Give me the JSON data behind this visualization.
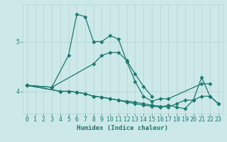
{
  "xlabel": "Humidex (Indice chaleur)",
  "background_color": "#cce8e8",
  "line_color": "#1a7a6e",
  "grid_color": "#b8d4d4",
  "xlim": [
    -0.5,
    23.5
  ],
  "ylim": [
    3.55,
    5.75
  ],
  "yticks": [
    4,
    5
  ],
  "xticks": [
    0,
    1,
    2,
    3,
    4,
    5,
    6,
    7,
    8,
    9,
    10,
    11,
    12,
    13,
    14,
    15,
    16,
    17,
    18,
    19,
    20,
    21,
    22,
    23
  ],
  "series": [
    {
      "x": [
        0,
        3,
        5,
        6,
        7,
        8,
        9,
        10,
        11,
        12,
        13,
        14,
        15,
        16,
        17,
        21,
        22
      ],
      "y": [
        4.12,
        4.08,
        4.72,
        5.55,
        5.5,
        5.0,
        5.0,
        5.12,
        5.05,
        4.6,
        4.2,
        3.9,
        3.8,
        3.85,
        3.85,
        4.15,
        4.15
      ]
    },
    {
      "x": [
        0,
        3,
        8,
        9,
        10,
        11,
        12,
        13,
        14,
        15
      ],
      "y": [
        4.12,
        4.08,
        4.55,
        4.72,
        4.78,
        4.78,
        4.62,
        4.35,
        4.1,
        3.9
      ]
    },
    {
      "x": [
        0,
        4,
        5,
        6,
        7,
        8,
        9,
        10,
        11,
        12,
        13,
        14,
        15,
        16,
        17,
        18,
        19,
        20,
        21,
        22,
        23
      ],
      "y": [
        4.12,
        4.0,
        4.0,
        3.98,
        3.95,
        3.9,
        3.88,
        3.85,
        3.82,
        3.8,
        3.78,
        3.75,
        3.72,
        3.7,
        3.68,
        3.75,
        3.82,
        3.82,
        3.9,
        3.9,
        3.75
      ]
    },
    {
      "x": [
        0,
        4,
        5,
        6,
        7,
        8,
        9,
        10,
        11,
        12,
        13,
        14,
        15,
        16,
        17,
        18,
        19,
        20,
        21,
        22,
        23
      ],
      "y": [
        4.12,
        4.0,
        4.0,
        3.98,
        3.95,
        3.9,
        3.88,
        3.85,
        3.82,
        3.78,
        3.75,
        3.72,
        3.7,
        3.68,
        3.72,
        3.68,
        3.65,
        3.82,
        4.28,
        3.9,
        3.75
      ]
    }
  ]
}
